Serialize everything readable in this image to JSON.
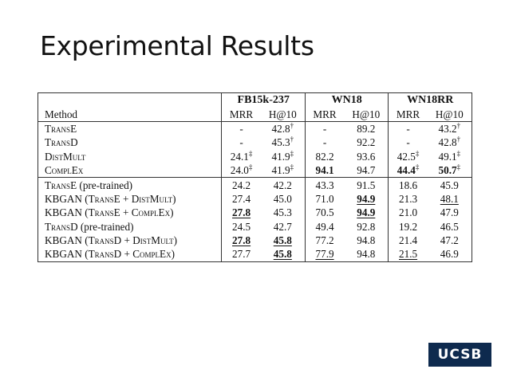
{
  "title": "Experimental Results",
  "logo_text": "UCSB",
  "colors": {
    "logo_bg": "#0e2a4e",
    "text": "#111111"
  },
  "table": {
    "method_header": "Method",
    "groups": [
      "FB15k-237",
      "WN18",
      "WN18RR"
    ],
    "metrics": [
      "MRR",
      "H@10",
      "MRR",
      "H@10",
      "MRR",
      "H@10"
    ],
    "rows": [
      {
        "method": "TransE",
        "cells": [
          {
            "v": "-"
          },
          {
            "v": "42.8",
            "sup": "†"
          },
          {
            "v": "-"
          },
          {
            "v": "89.2"
          },
          {
            "v": "-"
          },
          {
            "v": "43.2",
            "sup": "†"
          }
        ]
      },
      {
        "method": "TransD",
        "cells": [
          {
            "v": "-"
          },
          {
            "v": "45.3",
            "sup": "†"
          },
          {
            "v": "-"
          },
          {
            "v": "92.2"
          },
          {
            "v": "-"
          },
          {
            "v": "42.8",
            "sup": "†"
          }
        ]
      },
      {
        "method": "DistMult",
        "cells": [
          {
            "v": "24.1",
            "sup": "‡"
          },
          {
            "v": "41.9",
            "sup": "‡"
          },
          {
            "v": "82.2"
          },
          {
            "v": "93.6"
          },
          {
            "v": "42.5",
            "sup": "‡"
          },
          {
            "v": "49.1",
            "sup": "‡"
          }
        ]
      },
      {
        "method": "ComplEx",
        "cells": [
          {
            "v": "24.0",
            "sup": "‡"
          },
          {
            "v": "41.9",
            "sup": "‡"
          },
          {
            "v": "94.1",
            "bold": true
          },
          {
            "v": "94.7"
          },
          {
            "v": "44.4",
            "sup": "‡",
            "bold": true
          },
          {
            "v": "50.7",
            "sup": "‡",
            "bold": true
          }
        ]
      },
      {
        "method": "TransE (pre-trained)",
        "section_start": true,
        "cells": [
          {
            "v": "24.2"
          },
          {
            "v": "42.2"
          },
          {
            "v": "43.3"
          },
          {
            "v": "91.5"
          },
          {
            "v": "18.6"
          },
          {
            "v": "45.9"
          }
        ]
      },
      {
        "method": "KBGAN (TransE + DistMult)",
        "cells": [
          {
            "v": "27.4"
          },
          {
            "v": "45.0"
          },
          {
            "v": "71.0"
          },
          {
            "v": "94.9",
            "bold": true,
            "underline": true
          },
          {
            "v": "21.3"
          },
          {
            "v": "48.1",
            "underline": true
          }
        ]
      },
      {
        "method": "KBGAN (TransE + ComplEx)",
        "cells": [
          {
            "v": "27.8",
            "bold": true,
            "underline": true
          },
          {
            "v": "45.3"
          },
          {
            "v": "70.5"
          },
          {
            "v": "94.9",
            "bold": true,
            "underline": true
          },
          {
            "v": "21.0"
          },
          {
            "v": "47.9"
          }
        ]
      },
      {
        "method": "TransD (pre-trained)",
        "cells": [
          {
            "v": "24.5"
          },
          {
            "v": "42.7"
          },
          {
            "v": "49.4"
          },
          {
            "v": "92.8"
          },
          {
            "v": "19.2"
          },
          {
            "v": "46.5"
          }
        ]
      },
      {
        "method": "KBGAN (TransD + DistMult)",
        "cells": [
          {
            "v": "27.8",
            "bold": true,
            "underline": true
          },
          {
            "v": "45.8",
            "bold": true,
            "underline": true
          },
          {
            "v": "77.2"
          },
          {
            "v": "94.8"
          },
          {
            "v": "21.4"
          },
          {
            "v": "47.2"
          }
        ]
      },
      {
        "method": "KBGAN (TransD + ComplEx)",
        "cells": [
          {
            "v": "27.7"
          },
          {
            "v": "45.8",
            "bold": true,
            "underline": true
          },
          {
            "v": "77.9",
            "underline": true
          },
          {
            "v": "94.8"
          },
          {
            "v": "21.5",
            "underline": true
          },
          {
            "v": "46.9"
          }
        ]
      }
    ]
  }
}
